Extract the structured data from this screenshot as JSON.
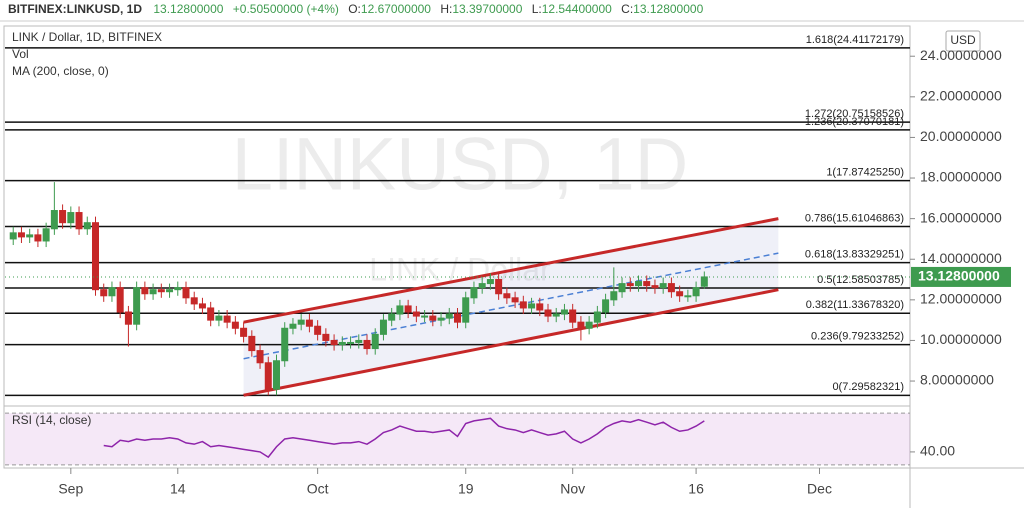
{
  "chart_data": {
    "type": "candlestick",
    "header": {
      "symbol": "BITFINEX:LINKUSD, 1D",
      "last": "13.12800000",
      "change": "+0.50500000 (+4%)",
      "o_label": "O:",
      "o": "12.67000000",
      "h_label": "H:",
      "h": "13.39700000",
      "l_label": "L:",
      "l": "12.54400000",
      "c_label": "C:",
      "c": "13.12800000"
    },
    "legend": [
      "LINK / Dollar, 1D, BITFINEX",
      "Vol",
      "MA (200, close, 0)"
    ],
    "watermark": {
      "title": "LINKUSD, 1D",
      "subtitle": "LINK / Dollar"
    },
    "currency": "USD",
    "up_color": "#3e9b4f",
    "down_color": "#c62828",
    "xlim": [
      -8,
      102
    ],
    "xticks": [
      {
        "value": 0,
        "label": "Sep"
      },
      {
        "value": 13,
        "label": "14"
      },
      {
        "value": 30,
        "label": "Oct"
      },
      {
        "value": 48,
        "label": "19"
      },
      {
        "value": 61,
        "label": "Nov"
      },
      {
        "value": 76,
        "label": "16"
      },
      {
        "value": 91,
        "label": "Dec"
      }
    ],
    "ylim": [
      6.82,
      25.39
    ],
    "yticks": [
      {
        "value": 8,
        "label": "8.00000000"
      },
      {
        "value": 10,
        "label": "10.00000000"
      },
      {
        "value": 12,
        "label": "12.00000000"
      },
      {
        "value": 14,
        "label": "14.00000000"
      },
      {
        "value": 16,
        "label": "16.00000000"
      },
      {
        "value": 18,
        "label": "18.00000000"
      },
      {
        "value": 20,
        "label": "20.00000000"
      },
      {
        "value": 22,
        "label": "22.00000000"
      },
      {
        "value": 24,
        "label": "24.00000000"
      }
    ],
    "last_price": {
      "value": 13.128,
      "label": "13.12800000"
    },
    "x": [
      -7,
      -6,
      -5,
      -4,
      -3,
      -2,
      -1,
      0,
      1,
      2,
      3,
      4,
      5,
      6,
      7,
      8,
      9,
      10,
      11,
      12,
      13,
      14,
      15,
      16,
      17,
      18,
      19,
      20,
      21,
      22,
      23,
      24,
      25,
      26,
      27,
      28,
      29,
      30,
      31,
      32,
      33,
      34,
      35,
      36,
      37,
      38,
      39,
      40,
      41,
      42,
      43,
      44,
      45,
      46,
      47,
      48,
      49,
      50,
      51,
      52,
      53,
      54,
      55,
      56,
      57,
      58,
      59,
      60,
      61,
      62,
      63,
      64,
      65,
      66,
      67,
      68,
      69,
      70,
      71,
      72,
      73,
      74,
      75,
      76,
      77
    ],
    "open": [
      15.0,
      15.3,
      15.1,
      15.2,
      14.9,
      15.5,
      16.4,
      15.8,
      16.3,
      15.5,
      15.8,
      12.5,
      12.2,
      12.6,
      11.4,
      10.8,
      12.6,
      12.3,
      12.5,
      12.4,
      12.5,
      12.6,
      12.1,
      11.8,
      11.6,
      11.0,
      11.2,
      10.9,
      10.6,
      10.2,
      9.5,
      8.9,
      7.6,
      9.0,
      10.6,
      10.8,
      11.0,
      10.7,
      10.3,
      10.0,
      9.8,
      9.9,
      9.9,
      10.0,
      9.6,
      10.3,
      11.0,
      11.3,
      11.7,
      11.4,
      11.2,
      11.2,
      11.0,
      11.1,
      11.3,
      10.9,
      12.1,
      12.6,
      12.8,
      13.0,
      12.3,
      12.1,
      11.9,
      11.6,
      11.8,
      11.5,
      11.2,
      11.3,
      11.5,
      10.9,
      10.6,
      10.9,
      11.4,
      12.0,
      12.4,
      12.8,
      12.7,
      12.9,
      12.7,
      12.6,
      12.8,
      12.4,
      12.2,
      12.2,
      12.67
    ],
    "high": [
      15.6,
      15.6,
      15.5,
      15.5,
      15.8,
      17.8,
      16.7,
      16.6,
      16.6,
      16.1,
      16.1,
      12.8,
      12.9,
      12.9,
      11.7,
      12.9,
      12.9,
      12.8,
      12.8,
      12.8,
      12.9,
      12.9,
      12.4,
      12.1,
      11.9,
      11.5,
      11.5,
      11.2,
      10.9,
      10.5,
      9.8,
      9.2,
      9.3,
      10.9,
      11.1,
      11.3,
      11.3,
      11.0,
      10.6,
      10.3,
      10.2,
      10.2,
      10.3,
      10.3,
      10.6,
      11.3,
      11.6,
      12.0,
      12.0,
      11.7,
      11.5,
      11.5,
      11.4,
      11.6,
      11.6,
      12.4,
      12.9,
      13.1,
      13.3,
      13.3,
      12.6,
      12.4,
      12.2,
      12.1,
      12.1,
      11.8,
      11.6,
      11.8,
      11.8,
      11.2,
      11.2,
      11.7,
      12.3,
      13.6,
      13.1,
      13.1,
      13.2,
      13.2,
      13.0,
      13.1,
      13.1,
      12.7,
      12.5,
      12.9,
      13.397
    ],
    "low": [
      14.7,
      14.8,
      14.8,
      14.6,
      14.6,
      15.2,
      15.5,
      15.5,
      15.2,
      15.2,
      12.2,
      11.9,
      11.9,
      11.1,
      9.7,
      10.5,
      12.0,
      12.0,
      12.1,
      12.1,
      12.2,
      11.8,
      11.5,
      11.3,
      10.7,
      10.7,
      10.6,
      10.3,
      9.9,
      9.2,
      8.6,
      7.3,
      7.3,
      8.7,
      10.3,
      10.5,
      10.4,
      10.0,
      9.7,
      9.5,
      9.5,
      9.6,
      9.6,
      9.3,
      9.3,
      10.0,
      10.7,
      11.0,
      11.1,
      10.9,
      10.9,
      10.7,
      10.7,
      10.8,
      10.6,
      10.6,
      11.8,
      12.3,
      12.5,
      12.0,
      11.8,
      11.6,
      11.3,
      11.3,
      11.2,
      10.9,
      10.9,
      11.0,
      10.6,
      10.0,
      10.3,
      10.6,
      11.1,
      11.7,
      12.1,
      12.4,
      12.4,
      12.4,
      12.3,
      12.3,
      12.1,
      11.9,
      11.9,
      11.9,
      12.544
    ],
    "close": [
      15.3,
      15.1,
      15.2,
      14.9,
      15.5,
      16.4,
      15.8,
      16.3,
      15.5,
      15.8,
      12.5,
      12.2,
      12.6,
      11.4,
      10.8,
      12.6,
      12.3,
      12.5,
      12.4,
      12.5,
      12.6,
      12.1,
      11.8,
      11.6,
      11.0,
      11.2,
      10.9,
      10.6,
      10.2,
      9.5,
      8.9,
      7.6,
      9.0,
      10.6,
      10.8,
      11.0,
      10.7,
      10.3,
      10.0,
      9.8,
      9.9,
      9.9,
      10.0,
      9.6,
      10.3,
      11.0,
      11.3,
      11.7,
      11.4,
      11.2,
      11.2,
      11.0,
      11.1,
      11.3,
      10.9,
      12.1,
      12.6,
      12.8,
      13.0,
      12.3,
      12.1,
      11.9,
      11.6,
      11.8,
      11.5,
      11.2,
      11.3,
      11.5,
      10.9,
      10.6,
      10.9,
      11.4,
      12.0,
      12.4,
      12.8,
      12.7,
      12.9,
      12.7,
      12.6,
      12.8,
      12.4,
      12.2,
      12.2,
      12.6,
      13.128
    ],
    "fib_levels": [
      {
        "value": 24.41172179,
        "label": "1.618(24.41172179)"
      },
      {
        "value": 20.75158526,
        "label": "1.272(20.75158526)"
      },
      {
        "value": 20.37070181,
        "label": "1.236(20.37070181)"
      },
      {
        "value": 17.8742525,
        "label": "1(17.87425250)"
      },
      {
        "value": 15.61046863,
        "label": "0.786(15.61046863)"
      },
      {
        "value": 13.83329251,
        "label": "0.618(13.83329251)"
      },
      {
        "value": 12.58503785,
        "label": "0.5(12.58503785)"
      },
      {
        "value": 11.3367832,
        "label": "0.382(11.33678320)"
      },
      {
        "value": 9.79233252,
        "label": "0.236(9.79233252)"
      },
      {
        "value": 7.29582321,
        "label": "0(7.29582321)"
      }
    ],
    "channel": {
      "x": [
        21,
        86
      ],
      "upper": [
        10.9,
        16.0
      ],
      "middle": [
        9.1,
        14.3
      ],
      "lower": [
        7.3,
        12.5
      ],
      "color": "#c62828",
      "middle_color": "#4a7fd4"
    },
    "rsi": {
      "label": "RSI (14, close)",
      "color": "#8e24aa",
      "ylim": [
        26,
        74
      ],
      "band": [
        30,
        70
      ],
      "yticks": [
        {
          "value": 40,
          "label": "40.00"
        }
      ],
      "values": [
        null,
        null,
        null,
        null,
        null,
        null,
        null,
        null,
        null,
        null,
        null,
        45,
        44,
        49,
        48,
        50,
        49,
        50,
        50,
        51,
        50,
        47,
        46,
        48,
        44,
        45,
        44,
        43,
        42,
        41,
        40,
        36,
        44,
        50,
        51,
        50,
        49,
        48,
        47,
        46,
        47,
        47,
        48,
        46,
        50,
        55,
        57,
        60,
        58,
        56,
        56,
        55,
        56,
        57,
        52,
        62,
        64,
        65,
        66,
        60,
        58,
        57,
        55,
        57,
        55,
        53,
        54,
        56,
        50,
        47,
        50,
        54,
        59,
        62,
        64,
        63,
        65,
        63,
        61,
        63,
        59,
        56,
        57,
        60,
        64
      ]
    }
  }
}
